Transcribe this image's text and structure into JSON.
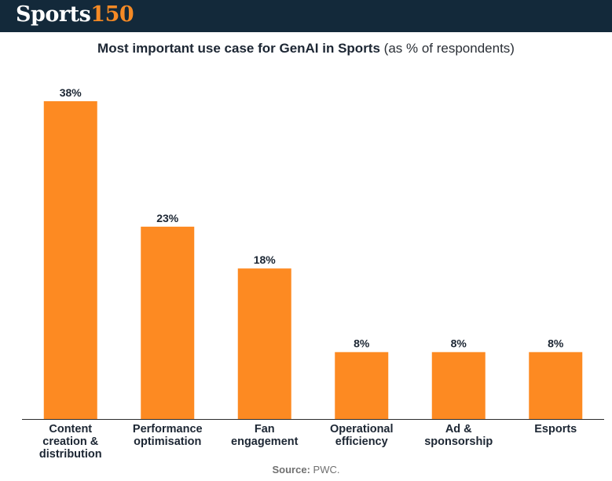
{
  "header": {
    "logo_word": "Sports",
    "logo_number": "150"
  },
  "chart_data": {
    "type": "bar",
    "title": "Most important use case for GenAI in Sports",
    "subtitle": "(as % of respondents)",
    "categories": [
      [
        "Content",
        "creation &",
        "distribution"
      ],
      [
        "Performance",
        "optimisation"
      ],
      [
        "Fan",
        "engagement"
      ],
      [
        "Operational",
        "efficiency"
      ],
      [
        "Ad &",
        "sponsorship"
      ],
      [
        "Esports"
      ]
    ],
    "values": [
      38,
      23,
      18,
      8,
      8,
      8
    ],
    "value_labels": [
      "38%",
      "23%",
      "18%",
      "8%",
      "8%",
      "8%"
    ],
    "unit": "%",
    "ylim": [
      0,
      38
    ],
    "grid": false,
    "legend": "none",
    "bar_color": "#fd8a22"
  },
  "footer": {
    "source_label": "Source:",
    "source_text": "PWC."
  },
  "colors": {
    "header_bg": "#13293a",
    "logo_accent": "#f58a25"
  }
}
